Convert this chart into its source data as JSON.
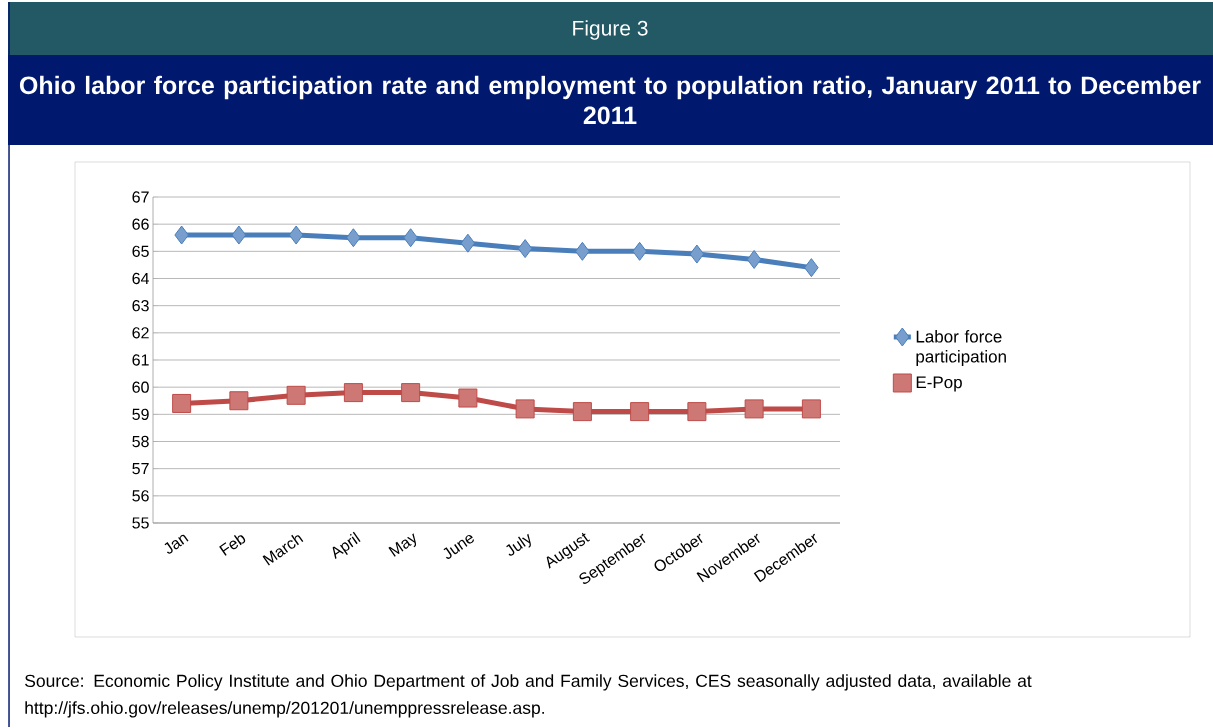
{
  "chart_data": {
    "type": "line",
    "subtitle": "Figure 3",
    "title": "Ohio labor force participation rate and employment to population ratio, January 2011 to December 2011",
    "categories": [
      "Jan",
      "Feb",
      "March",
      "April",
      "May",
      "June",
      "July",
      "August",
      "September",
      "October",
      "November",
      "December"
    ],
    "series": [
      {
        "name": "Labor force participation",
        "color": "#4a7ebb",
        "marker": "diamond",
        "values": [
          65.6,
          65.6,
          65.6,
          65.5,
          65.5,
          65.3,
          65.1,
          65.0,
          65.0,
          64.9,
          64.7,
          64.4
        ]
      },
      {
        "name": "E-Pop",
        "color": "#be4b48",
        "marker": "square",
        "values": [
          59.4,
          59.5,
          59.7,
          59.8,
          59.8,
          59.6,
          59.2,
          59.1,
          59.1,
          59.1,
          59.2,
          59.2
        ]
      }
    ],
    "ylim": [
      55,
      67
    ],
    "yticks": [
      55,
      56,
      57,
      58,
      59,
      60,
      61,
      62,
      63,
      64,
      65,
      66,
      67
    ],
    "grid": "y",
    "legend": "right",
    "line_style": "solid",
    "annotations": [
      "Source:  Economic Policy Institute and Ohio Department of Job and Family Services, CES seasonally adjusted data, available at http://jfs.ohio.gov/releases/unemp/201201/unemppressrelease.asp."
    ]
  }
}
